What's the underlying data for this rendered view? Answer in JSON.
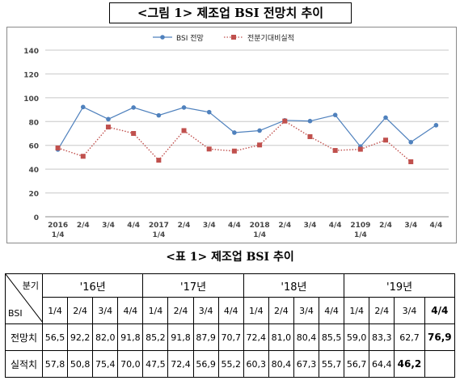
{
  "figure_title": "<그림 1> 제조업 BSI 전망치 추이",
  "table_title": "<표 1> 제조업 BSI 추이",
  "chart_data": {
    "type": "line",
    "title": "",
    "xlabel": "",
    "ylabel": "",
    "ylim": [
      0,
      140
    ],
    "yticks": [
      0,
      20,
      40,
      60,
      80,
      100,
      120,
      140
    ],
    "grid": true,
    "legend_position": "top-center",
    "categories": [
      "2016\n1/4",
      "2/4",
      "3/4",
      "4/4",
      "2017\n1/4",
      "2/4",
      "3/4",
      "4/4",
      "2018\n1/4",
      "2/4",
      "3/4",
      "4/4",
      "2109\n1/4",
      "2/4",
      "3/4",
      "4/4"
    ],
    "series": [
      {
        "name": "BSI 전망",
        "color": "#4f81bd",
        "marker": "circle",
        "style": "solid",
        "values": [
          56.5,
          92.2,
          82.0,
          91.8,
          85.2,
          91.8,
          87.9,
          70.7,
          72.4,
          81.0,
          80.4,
          85.5,
          59.0,
          83.3,
          62.7,
          76.9
        ]
      },
      {
        "name": "전분기대비실적",
        "color": "#c0504d",
        "marker": "square",
        "style": "dotted",
        "values": [
          57.8,
          50.8,
          75.4,
          70.0,
          47.5,
          72.4,
          56.9,
          55.2,
          60.3,
          80.4,
          67.3,
          55.7,
          56.7,
          64.4,
          46.2,
          null
        ]
      }
    ]
  },
  "table": {
    "corner_top": "분기",
    "corner_bottom": "BSI",
    "years": [
      "'16년",
      "'17년",
      "'18년",
      "'19년"
    ],
    "quarters": [
      "1/4",
      "2/4",
      "3/4",
      "4/4",
      "1/4",
      "2/4",
      "3/4",
      "4/4",
      "1/4",
      "2/4",
      "3/4",
      "4/4",
      "1/4",
      "2/4",
      "3/4",
      "4/4"
    ],
    "rows": [
      {
        "label": "전망치",
        "cells": [
          "56,5",
          "92,2",
          "82,0",
          "91,8",
          "85,2",
          "91,8",
          "87,9",
          "70,7",
          "72,4",
          "81,0",
          "80,4",
          "85,5",
          "59,0",
          "83,3",
          "62,7",
          "76,9"
        ]
      },
      {
        "label": "실적치",
        "cells": [
          "57,8",
          "50,8",
          "75,4",
          "70,0",
          "47,5",
          "72,4",
          "56,9",
          "55,2",
          "60,3",
          "80,4",
          "67,3",
          "55,7",
          "56,7",
          "64,4",
          "46,2",
          ""
        ]
      }
    ]
  }
}
